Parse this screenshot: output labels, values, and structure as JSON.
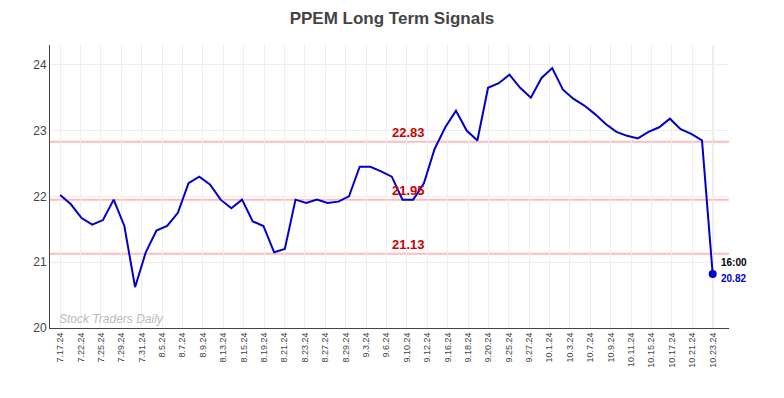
{
  "chart_data": {
    "type": "line",
    "title": "PPEM Long Term Signals",
    "color": "#0000cc",
    "grid": true,
    "x": [
      0,
      0.52459,
      1.04918,
      1.57377,
      2.098361,
      2.622951,
      3.147541,
      3.672131,
      4.196721,
      4.721311,
      5.245902,
      5.770492,
      6.295082,
      6.819672,
      7.344262,
      7.868852,
      8.393443,
      8.918033,
      9.442623,
      9.967213,
      10.491803,
      11.016393,
      11.540984,
      12.065574,
      12.590164,
      13.114754,
      13.639344,
      14.163934,
      14.688525,
      15.213115,
      15.737705,
      16.262295,
      16.786885,
      17.311475,
      17.836066,
      18.360656,
      18.885246,
      19.409836,
      19.934426,
      20.459016,
      20.983607,
      21.508197,
      22.032787,
      22.557377,
      23.081967,
      23.606557,
      24.131148,
      24.655738,
      25.180328,
      25.704918,
      26.229508,
      26.754098,
      27.278689,
      27.803279,
      28.327869,
      28.852459,
      29.377049,
      29.901639,
      30.42623,
      30.95082,
      31.47541,
      32
    ],
    "values": [
      22.02,
      21.88,
      21.67,
      21.57,
      21.64,
      21.95,
      21.55,
      20.62,
      21.15,
      21.48,
      21.55,
      21.75,
      22.2,
      22.3,
      22.18,
      21.95,
      21.82,
      21.95,
      21.62,
      21.55,
      21.15,
      21.2,
      21.95,
      21.9,
      21.95,
      21.9,
      21.92,
      22.0,
      22.45,
      22.45,
      22.38,
      22.3,
      21.95,
      21.95,
      22.2,
      22.72,
      23.05,
      23.3,
      23.0,
      22.85,
      23.65,
      23.72,
      23.85,
      23.65,
      23.5,
      23.8,
      23.95,
      23.62,
      23.48,
      23.38,
      23.25,
      23.1,
      22.98,
      22.92,
      22.88,
      22.98,
      23.05,
      23.18,
      23.02,
      22.95,
      22.85,
      20.82
    ],
    "xlim": [
      -0.5,
      32.8
    ],
    "xticks": [
      {
        "value": 0,
        "label": "7.17.24"
      },
      {
        "value": 1,
        "label": "7.22.24"
      },
      {
        "value": 2,
        "label": "7.25.24"
      },
      {
        "value": 3,
        "label": "7.29.24"
      },
      {
        "value": 4,
        "label": "7.31.24"
      },
      {
        "value": 5,
        "label": "8.5.24"
      },
      {
        "value": 6,
        "label": "8.7.24"
      },
      {
        "value": 7,
        "label": "8.9.24"
      },
      {
        "value": 8,
        "label": "8.13.24"
      },
      {
        "value": 9,
        "label": "8.15.24"
      },
      {
        "value": 10,
        "label": "8.19.24"
      },
      {
        "value": 11,
        "label": "8.21.24"
      },
      {
        "value": 12,
        "label": "8.23.24"
      },
      {
        "value": 13,
        "label": "8.27.24"
      },
      {
        "value": 14,
        "label": "8.29.24"
      },
      {
        "value": 15,
        "label": "9.3.24"
      },
      {
        "value": 16,
        "label": "9.6.24"
      },
      {
        "value": 17,
        "label": "9.10.24"
      },
      {
        "value": 18,
        "label": "9.12.24"
      },
      {
        "value": 19,
        "label": "9.16.24"
      },
      {
        "value": 20,
        "label": "9.18.24"
      },
      {
        "value": 21,
        "label": "9.20.24"
      },
      {
        "value": 22,
        "label": "9.25.24"
      },
      {
        "value": 23,
        "label": "9.27.24"
      },
      {
        "value": 24,
        "label": "10.1.24"
      },
      {
        "value": 25,
        "label": "10.3.24"
      },
      {
        "value": 26,
        "label": "10.7.24"
      },
      {
        "value": 27,
        "label": "10.9.24"
      },
      {
        "value": 28,
        "label": "10.11.24"
      },
      {
        "value": 29,
        "label": "10.15.24"
      },
      {
        "value": 30,
        "label": "10.17.24"
      },
      {
        "value": 31,
        "label": "10.21.24"
      },
      {
        "value": 32,
        "label": "10.23.24"
      }
    ],
    "ylim": [
      20,
      24.3
    ],
    "yticks": [
      20,
      21,
      22,
      23,
      24
    ],
    "reference_lines": [
      {
        "y": 22.83,
        "label": "22.83",
        "color": "#ffbbbb",
        "label_color": "#cc0000"
      },
      {
        "y": 21.95,
        "label": "21.95",
        "color": "#ffbbbb",
        "label_color": "#cc0000"
      },
      {
        "y": 21.13,
        "label": "21.13",
        "color": "#ffbbbb",
        "label_color": "#cc0000"
      }
    ],
    "end_labels": [
      {
        "text": "16:00",
        "color": "#000000"
      },
      {
        "text": "20.82",
        "color": "#0000cc"
      }
    ],
    "annotations": [
      {
        "text": "Stock Traders Daily",
        "color": "#bbbbbb"
      }
    ]
  }
}
